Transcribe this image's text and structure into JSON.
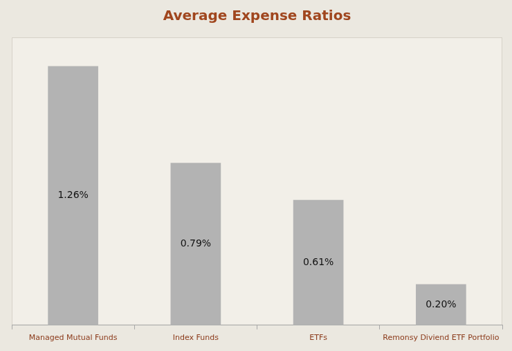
{
  "chart_data": {
    "type": "bar",
    "title": "Average Expense Ratios",
    "categories": [
      "Managed Mutual Funds",
      "Index Funds",
      "ETFs",
      "Remonsy Diviend ETF Portfolio"
    ],
    "values": [
      1.26,
      0.79,
      0.61,
      0.2
    ],
    "value_labels": [
      "1.26%",
      "0.79%",
      "0.61%",
      "0.20%"
    ],
    "color": "#b3b3b3",
    "ylim": [
      0,
      1.4
    ],
    "grid": false,
    "data_labels": true,
    "tick_labels": "x"
  }
}
